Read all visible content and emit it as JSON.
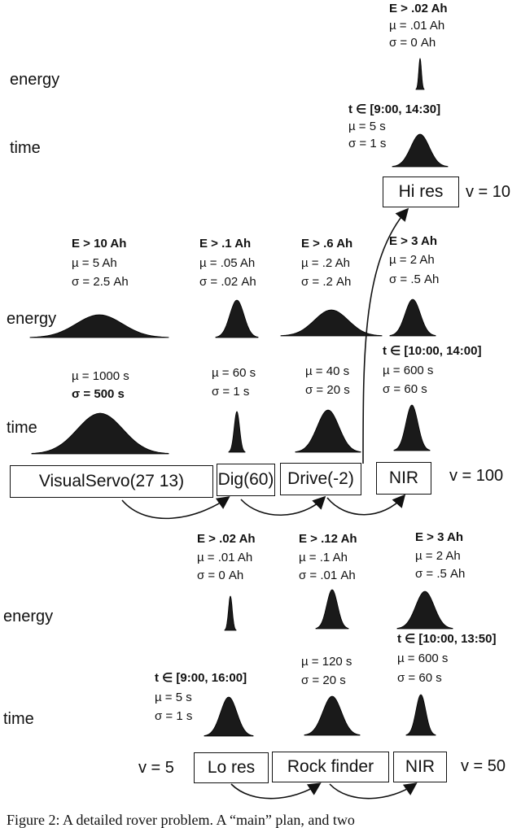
{
  "top": {
    "energy_label": "energy",
    "time_label": "time",
    "hires": {
      "energy": {
        "cond": "E > .02 Ah",
        "mu": "µ = .01 Ah",
        "sigma": "σ = 0 Ah"
      },
      "time": {
        "cond": "t ∈ [9:00, 14:30]",
        "mu": "µ = 5 s",
        "sigma": "σ = 1 s"
      }
    },
    "box": "Hi res",
    "value": "v = 10"
  },
  "main": {
    "energy_label": "energy",
    "time_label": "time",
    "actions": [
      {
        "box": "VisualServo(27 13)",
        "energy": {
          "cond": "E > 10 Ah",
          "mu": "µ = 5 Ah",
          "sigma": "σ = 2.5 Ah"
        },
        "time": {
          "cond": "",
          "mu": "µ = 1000 s",
          "sigma": "σ = 500 s"
        }
      },
      {
        "box": "Dig(60)",
        "energy": {
          "cond": "E > .1 Ah",
          "mu": "µ = .05 Ah",
          "sigma": "σ = .02 Ah"
        },
        "time": {
          "cond": "",
          "mu": "µ = 60 s",
          "sigma": "σ = 1 s"
        }
      },
      {
        "box": "Drive(-2)",
        "energy": {
          "cond": "E > .6 Ah",
          "mu": "µ = .2 Ah",
          "sigma": "σ = .2 Ah"
        },
        "time": {
          "cond": "",
          "mu": "µ = 40 s",
          "sigma": "σ = 20 s"
        }
      },
      {
        "box": "NIR",
        "energy": {
          "cond": "E > 3 Ah",
          "mu": "µ = 2 Ah",
          "sigma": "σ = .5 Ah"
        },
        "time": {
          "cond": "t ∈ [10:00, 14:00]",
          "mu": "µ = 600 s",
          "sigma": "σ = 60 s"
        }
      }
    ],
    "value": "v = 100"
  },
  "bottom": {
    "energy_label": "energy",
    "time_label": "time",
    "value_left": "v = 5",
    "actions": [
      {
        "box": "Lo res",
        "energy": {
          "cond": "E > .02 Ah",
          "mu": "µ = .01 Ah",
          "sigma": "σ = 0 Ah"
        },
        "time": {
          "cond": "t ∈ [9:00, 16:00]",
          "mu": "µ = 5 s",
          "sigma": "σ = 1 s"
        }
      },
      {
        "box": "Rock finder",
        "energy": {
          "cond": "E > .12 Ah",
          "mu": "µ = .1 Ah",
          "sigma": "σ = .01 Ah"
        },
        "time": {
          "cond": "",
          "mu": "µ = 120 s",
          "sigma": "σ = 20 s"
        }
      },
      {
        "box": "NIR",
        "energy": {
          "cond": "E > 3 Ah",
          "mu": "µ = 2 Ah",
          "sigma": "σ = .5 Ah"
        },
        "time": {
          "cond": "t ∈ [10:00, 13:50]",
          "mu": "µ = 600 s",
          "sigma": "σ = 60 s"
        }
      }
    ],
    "value_right": "v = 50"
  },
  "caption": "Figure 2: A detailed rover problem. A “main” plan, and two"
}
